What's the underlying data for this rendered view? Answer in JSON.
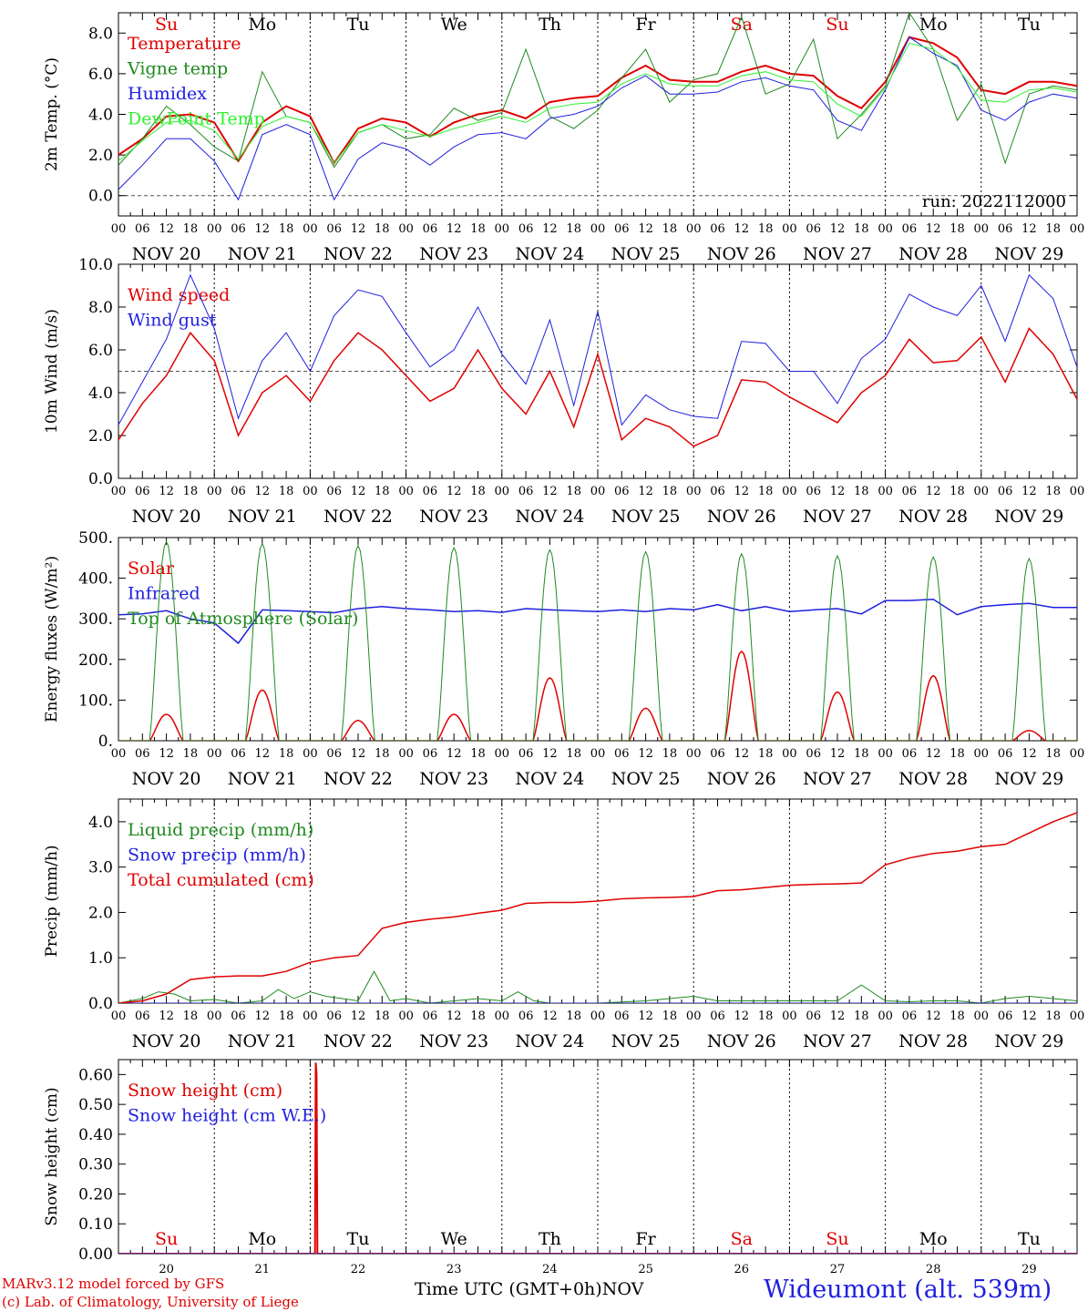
{
  "station": "Wideumont (alt. 539m)",
  "credits": [
    "MARv3.12 model forced by GFS",
    "(c) Lab. of Climatology, University of Liege"
  ],
  "x_axis_title": "Time UTC (GMT+0h)",
  "month_label": "NOV",
  "run_label": "run: 2022112000",
  "day_names": [
    "Su",
    "Mo",
    "Tu",
    "We",
    "Th",
    "Fr",
    "Sa",
    "Su",
    "Mo",
    "Tu"
  ],
  "weekend_flags": [
    true,
    false,
    false,
    false,
    false,
    false,
    true,
    true,
    false,
    false
  ],
  "date_labels": [
    "NOV 20",
    "NOV 21",
    "NOV 22",
    "NOV 23",
    "NOV 24",
    "NOV 25",
    "NOV 26",
    "NOV 27",
    "NOV 28",
    "NOV 29"
  ],
  "day_numbers": [
    "20",
    "21",
    "22",
    "23",
    "24",
    "25",
    "26",
    "27",
    "28",
    "29"
  ],
  "hour_labels": [
    "00",
    "06",
    "12",
    "18"
  ],
  "last_hour_label": "00",
  "colors": {
    "red": "#e00000",
    "green": "#1f8a1f",
    "blue": "#1f1fe0",
    "lightgreen": "#2ef02e"
  },
  "chart_data": [
    {
      "type": "line",
      "ylabel": "2m Temp. (°C)",
      "ylim": [
        -1.0,
        9.0
      ],
      "yticks": [
        0.0,
        2.0,
        4.0,
        6.0,
        8.0
      ],
      "ytick_labels": [
        "0.0",
        "2.0",
        "4.0",
        "6.0",
        "8.0"
      ],
      "dashed_zero": true,
      "show_day_names": true,
      "show_run": true,
      "legend_position": "top-left",
      "x_unit": "hours since NOV 20 00 UTC",
      "xlim": [
        0,
        240
      ],
      "series": [
        {
          "name": "Temperature",
          "color": "#e00000",
          "width": 2,
          "x": [
            0,
            6,
            12,
            18,
            24,
            30,
            36,
            42,
            48,
            54,
            60,
            66,
            72,
            78,
            84,
            90,
            96,
            102,
            108,
            114,
            120,
            126,
            132,
            138,
            144,
            150,
            156,
            162,
            168,
            174,
            180,
            186,
            192,
            198,
            204,
            210,
            216,
            222,
            228,
            234,
            240
          ],
          "y": [
            2.0,
            2.8,
            3.9,
            4.0,
            3.6,
            1.7,
            3.6,
            4.4,
            3.9,
            1.6,
            3.3,
            3.8,
            3.6,
            2.9,
            3.6,
            4.0,
            4.2,
            3.8,
            4.6,
            4.8,
            4.9,
            5.8,
            6.4,
            5.7,
            5.6,
            5.6,
            6.1,
            6.4,
            6.0,
            5.9,
            4.9,
            4.3,
            5.6,
            7.8,
            7.5,
            6.8,
            5.2,
            5.0,
            5.6,
            5.6,
            5.4
          ]
        },
        {
          "name": "Vigne temp",
          "color": "#1f8a1f",
          "width": 1,
          "x": [
            0,
            6,
            12,
            18,
            24,
            30,
            36,
            42,
            48,
            54,
            60,
            66,
            72,
            78,
            84,
            90,
            96,
            102,
            108,
            114,
            120,
            126,
            132,
            138,
            144,
            150,
            156,
            162,
            168,
            174,
            180,
            186,
            192,
            198,
            204,
            210,
            216,
            222,
            228,
            234,
            240
          ],
          "y": [
            1.5,
            2.8,
            4.4,
            3.5,
            2.4,
            1.7,
            6.1,
            3.9,
            3.6,
            1.4,
            3.1,
            3.5,
            2.8,
            3.0,
            4.3,
            3.7,
            4.1,
            7.2,
            3.9,
            3.3,
            4.2,
            5.8,
            7.2,
            4.6,
            5.7,
            6.0,
            8.8,
            5.0,
            5.5,
            7.7,
            2.8,
            4.0,
            5.4,
            9.0,
            7.2,
            3.7,
            5.5,
            1.6,
            5.0,
            5.4,
            5.2
          ]
        },
        {
          "name": "Humidex",
          "color": "#1f1fe0",
          "width": 1,
          "x": [
            0,
            6,
            12,
            18,
            24,
            30,
            36,
            42,
            48,
            54,
            60,
            66,
            72,
            78,
            84,
            90,
            96,
            102,
            108,
            114,
            120,
            126,
            132,
            138,
            144,
            150,
            156,
            162,
            168,
            174,
            180,
            186,
            192,
            198,
            204,
            210,
            216,
            222,
            228,
            234,
            240
          ],
          "y": [
            0.3,
            1.5,
            2.8,
            2.8,
            1.7,
            -0.2,
            3.0,
            3.5,
            3.0,
            -0.2,
            1.8,
            2.6,
            2.3,
            1.5,
            2.4,
            3.0,
            3.1,
            2.8,
            3.8,
            4.0,
            4.4,
            5.3,
            5.9,
            5.0,
            5.0,
            5.1,
            5.6,
            5.8,
            5.4,
            5.2,
            3.7,
            3.2,
            5.2,
            7.8,
            7.0,
            6.4,
            4.2,
            3.7,
            4.6,
            5.0,
            4.8
          ]
        },
        {
          "name": "DewPoint Temp",
          "color": "#2ef02e",
          "width": 1,
          "x": [
            0,
            6,
            12,
            18,
            24,
            30,
            36,
            42,
            48,
            54,
            60,
            66,
            72,
            78,
            84,
            90,
            96,
            102,
            108,
            114,
            120,
            126,
            132,
            138,
            144,
            150,
            156,
            162,
            168,
            174,
            180,
            186,
            192,
            198,
            204,
            210,
            216,
            222,
            228,
            234,
            240
          ],
          "y": [
            1.7,
            2.7,
            3.6,
            3.7,
            3.2,
            1.8,
            3.4,
            3.9,
            3.6,
            1.6,
            3.1,
            3.5,
            3.2,
            2.9,
            3.3,
            3.6,
            3.9,
            3.6,
            4.3,
            4.5,
            4.6,
            5.5,
            6.0,
            5.5,
            5.4,
            5.4,
            5.9,
            6.1,
            5.7,
            5.6,
            4.5,
            3.9,
            5.3,
            7.5,
            7.2,
            6.3,
            4.7,
            4.6,
            5.2,
            5.3,
            5.1
          ]
        }
      ]
    },
    {
      "type": "line",
      "ylabel": "10m Wind (m/s)",
      "ylim": [
        0.0,
        10.0
      ],
      "yticks": [
        0.0,
        2.0,
        4.0,
        6.0,
        8.0,
        10.0
      ],
      "ytick_labels": [
        "0.0",
        "2.0",
        "4.0",
        "6.0",
        "8.0",
        "10.0"
      ],
      "dashed_ref": 5.0,
      "legend_position": "top-left",
      "x_unit": "hours since NOV 20 00 UTC",
      "xlim": [
        0,
        240
      ],
      "series": [
        {
          "name": "Wind speed",
          "color": "#e00000",
          "width": 1.5,
          "x": [
            0,
            6,
            12,
            18,
            24,
            30,
            36,
            42,
            48,
            54,
            60,
            66,
            72,
            78,
            84,
            90,
            96,
            102,
            108,
            114,
            120,
            126,
            132,
            138,
            144,
            150,
            156,
            162,
            168,
            174,
            180,
            186,
            192,
            198,
            204,
            210,
            216,
            222,
            228,
            234,
            240
          ],
          "y": [
            1.8,
            3.5,
            4.8,
            6.8,
            5.5,
            2.0,
            4.0,
            4.8,
            3.6,
            5.5,
            6.8,
            6.0,
            4.8,
            3.6,
            4.2,
            6.0,
            4.2,
            3.0,
            5.0,
            2.4,
            5.8,
            1.8,
            2.8,
            2.4,
            1.5,
            2.0,
            4.6,
            4.5,
            3.8,
            3.2,
            2.6,
            4.0,
            4.8,
            6.5,
            5.4,
            5.5,
            6.6,
            4.5,
            7.0,
            5.8,
            3.7
          ]
        },
        {
          "name": "Wind gust",
          "color": "#1f1fe0",
          "width": 1,
          "x": [
            0,
            6,
            12,
            18,
            24,
            30,
            36,
            42,
            48,
            54,
            60,
            66,
            72,
            78,
            84,
            90,
            96,
            102,
            108,
            114,
            120,
            126,
            132,
            138,
            144,
            150,
            156,
            162,
            168,
            174,
            180,
            186,
            192,
            198,
            204,
            210,
            216,
            222,
            228,
            234,
            240
          ],
          "y": [
            2.5,
            4.5,
            6.5,
            9.5,
            7.0,
            2.8,
            5.5,
            6.8,
            5.0,
            7.6,
            8.8,
            8.5,
            6.8,
            5.2,
            6.0,
            8.0,
            5.8,
            4.4,
            7.4,
            3.4,
            7.8,
            2.5,
            3.9,
            3.2,
            2.9,
            2.8,
            6.4,
            6.3,
            5.0,
            5.0,
            3.5,
            5.6,
            6.5,
            8.6,
            8.0,
            7.6,
            9.0,
            6.4,
            9.5,
            8.4,
            5.2
          ]
        }
      ]
    },
    {
      "type": "line",
      "ylabel": "Energy fluxes (W/m²)",
      "ylim": [
        0,
        500
      ],
      "yticks": [
        0,
        100,
        200,
        300,
        400,
        500
      ],
      "ytick_labels": [
        "0.",
        "100.",
        "200.",
        "300.",
        "400.",
        "500."
      ],
      "legend_position": "top-left",
      "x_unit": "hours since NOV 20 00 UTC",
      "xlim": [
        0,
        240
      ],
      "solar_day_peaks_toa": [
        490,
        485,
        480,
        475,
        470,
        465,
        460,
        455,
        452,
        448
      ],
      "solar_day_peaks_surface": [
        65,
        125,
        50,
        65,
        155,
        80,
        220,
        120,
        160,
        25
      ],
      "daylight_hours": [
        7.8,
        16.2
      ],
      "series": [
        {
          "name": "Solar",
          "color": "#e00000",
          "width": 1.5,
          "derived_from": "solar_day_peaks_surface"
        },
        {
          "name": "Infrared",
          "color": "#1f1fe0",
          "width": 1.5,
          "x": [
            0,
            6,
            12,
            18,
            24,
            30,
            36,
            42,
            48,
            54,
            60,
            66,
            72,
            78,
            84,
            90,
            96,
            102,
            108,
            114,
            120,
            126,
            132,
            138,
            144,
            150,
            156,
            162,
            168,
            174,
            180,
            186,
            192,
            198,
            204,
            210,
            216,
            222,
            228,
            234,
            240
          ],
          "y": [
            310,
            312,
            320,
            300,
            290,
            240,
            322,
            320,
            318,
            315,
            325,
            330,
            325,
            322,
            318,
            320,
            316,
            325,
            322,
            320,
            318,
            322,
            318,
            325,
            322,
            335,
            320,
            330,
            318,
            322,
            325,
            312,
            345,
            345,
            348,
            310,
            330,
            335,
            338,
            328,
            328
          ]
        },
        {
          "name": "Top of Atmosphere (Solar)",
          "color": "#1f8a1f",
          "width": 1,
          "derived_from": "solar_day_peaks_toa"
        }
      ]
    },
    {
      "type": "line",
      "ylabel": "Precip (mm/h)",
      "ylim": [
        0.0,
        4.5
      ],
      "yticks": [
        0.0,
        1.0,
        2.0,
        3.0,
        4.0
      ],
      "ytick_labels": [
        "0.0",
        "1.0",
        "2.0",
        "3.0",
        "4.0"
      ],
      "legend_position": "top-left",
      "x_unit": "hours since NOV 20 00 UTC",
      "xlim": [
        0,
        240
      ],
      "series": [
        {
          "name": "Liquid precip (mm/h)",
          "color": "#1f8a1f",
          "width": 1,
          "x": [
            0,
            6,
            10,
            14,
            18,
            24,
            30,
            36,
            40,
            44,
            48,
            52,
            56,
            60,
            64,
            68,
            72,
            78,
            84,
            90,
            96,
            100,
            104,
            108,
            114,
            120,
            132,
            144,
            150,
            156,
            168,
            180,
            186,
            192,
            198,
            204,
            210,
            216,
            222,
            228,
            234,
            240
          ],
          "y": [
            0.0,
            0.1,
            0.25,
            0.2,
            0.05,
            0.08,
            0.0,
            0.05,
            0.3,
            0.1,
            0.25,
            0.15,
            0.1,
            0.05,
            0.7,
            0.05,
            0.1,
            0.0,
            0.05,
            0.1,
            0.05,
            0.25,
            0.05,
            0.0,
            0.0,
            0.0,
            0.05,
            0.15,
            0.05,
            0.05,
            0.05,
            0.05,
            0.4,
            0.05,
            0.03,
            0.05,
            0.05,
            0.0,
            0.1,
            0.15,
            0.1,
            0.05
          ]
        },
        {
          "name": "Snow precip (mm/h)",
          "color": "#1f1fe0",
          "width": 1,
          "x": [
            0,
            240
          ],
          "y": [
            0.0,
            0.0
          ]
        },
        {
          "name": "Total cumulated (cm)",
          "color": "#e00000",
          "width": 1.5,
          "x": [
            0,
            6,
            12,
            18,
            24,
            30,
            36,
            42,
            48,
            54,
            60,
            66,
            72,
            78,
            84,
            90,
            96,
            102,
            108,
            114,
            120,
            126,
            132,
            138,
            144,
            150,
            156,
            162,
            168,
            174,
            180,
            186,
            192,
            198,
            204,
            210,
            216,
            222,
            228,
            234,
            240
          ],
          "y": [
            0.0,
            0.05,
            0.2,
            0.52,
            0.58,
            0.6,
            0.6,
            0.7,
            0.9,
            1.0,
            1.05,
            1.65,
            1.78,
            1.85,
            1.9,
            1.98,
            2.05,
            2.2,
            2.22,
            2.22,
            2.25,
            2.3,
            2.32,
            2.33,
            2.35,
            2.48,
            2.5,
            2.55,
            2.6,
            2.62,
            2.63,
            2.65,
            3.05,
            3.2,
            3.3,
            3.35,
            3.45,
            3.5,
            3.75,
            4.0,
            4.2
          ]
        }
      ]
    },
    {
      "type": "line",
      "ylabel": "Snow height (cm)",
      "ylim": [
        0.0,
        0.65
      ],
      "yticks": [
        0.0,
        0.1,
        0.2,
        0.3,
        0.4,
        0.5,
        0.6
      ],
      "ytick_labels": [
        "0.00",
        "0.10",
        "0.20",
        "0.30",
        "0.40",
        "0.50",
        "0.60"
      ],
      "legend_position": "top-left",
      "day_names_bottom": true,
      "x_unit": "hours since NOV 20 00 UTC",
      "xlim": [
        0,
        240
      ],
      "series": [
        {
          "name": "Snow height (cm)",
          "color": "#e00000",
          "width": 2,
          "x": [
            0,
            49.2,
            49.4,
            49.6,
            49.8,
            50,
            240
          ],
          "y": [
            0,
            0,
            0.64,
            0.6,
            0.0,
            0,
            0
          ]
        },
        {
          "name": "Snow height (cm W.E.)",
          "color": "#1f1fe0",
          "width": 1,
          "x": [
            0,
            240
          ],
          "y": [
            0,
            0
          ]
        }
      ]
    }
  ]
}
